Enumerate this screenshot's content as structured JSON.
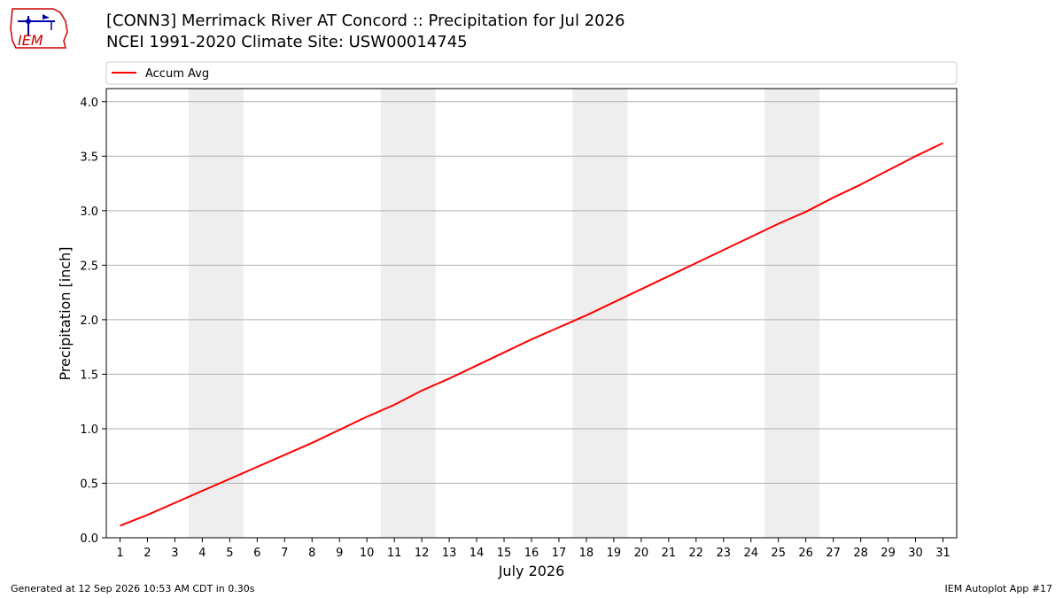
{
  "header": {
    "title_line1": "[CONN3] Merrimack River  AT Concord :: Precipitation for Jul 2026",
    "title_line2": "NCEI 1991-2020 Climate Site: USW00014745",
    "logo_text": "IEM"
  },
  "footer": {
    "left": "Generated at 12 Sep 2026 10:53 AM CDT in 0.30s",
    "right": "IEM Autoplot App #17"
  },
  "colors": {
    "series": "#ff0000",
    "weekend_band": "#eeeeee",
    "grid": "#b0b0b0",
    "logo": "#cc0000",
    "logo_accent": "#0000aa"
  },
  "chart_data": {
    "type": "line",
    "xlabel": "July 2026",
    "ylabel": "Precipitation [inch]",
    "xlim": [
      0.5,
      31.5
    ],
    "ylim": [
      0,
      4.12
    ],
    "yticks": [
      0.0,
      0.5,
      1.0,
      1.5,
      2.0,
      2.5,
      3.0,
      3.5,
      4.0
    ],
    "ytick_labels": [
      "0.0",
      "0.5",
      "1.0",
      "1.5",
      "2.0",
      "2.5",
      "3.0",
      "3.5",
      "4.0"
    ],
    "x": [
      1,
      2,
      3,
      4,
      5,
      6,
      7,
      8,
      9,
      10,
      11,
      12,
      13,
      14,
      15,
      16,
      17,
      18,
      19,
      20,
      21,
      22,
      23,
      24,
      25,
      26,
      27,
      28,
      29,
      30,
      31
    ],
    "xtick_labels": [
      "1",
      "2",
      "3",
      "4",
      "5",
      "6",
      "7",
      "8",
      "9",
      "10",
      "11",
      "12",
      "13",
      "14",
      "15",
      "16",
      "17",
      "18",
      "19",
      "20",
      "21",
      "22",
      "23",
      "24",
      "25",
      "26",
      "27",
      "28",
      "29",
      "30",
      "31"
    ],
    "grid": "y",
    "legend_position": "top",
    "weekend_bands": [
      [
        3.5,
        5.5
      ],
      [
        10.5,
        12.5
      ],
      [
        17.5,
        19.5
      ],
      [
        24.5,
        26.5
      ]
    ],
    "series": [
      {
        "name": "Accum Avg",
        "values": [
          0.11,
          0.21,
          0.32,
          0.43,
          0.54,
          0.65,
          0.76,
          0.87,
          0.99,
          1.11,
          1.22,
          1.35,
          1.46,
          1.58,
          1.7,
          1.82,
          1.93,
          2.04,
          2.16,
          2.28,
          2.4,
          2.52,
          2.64,
          2.76,
          2.88,
          2.99,
          3.12,
          3.24,
          3.37,
          3.5,
          3.62
        ]
      }
    ]
  }
}
